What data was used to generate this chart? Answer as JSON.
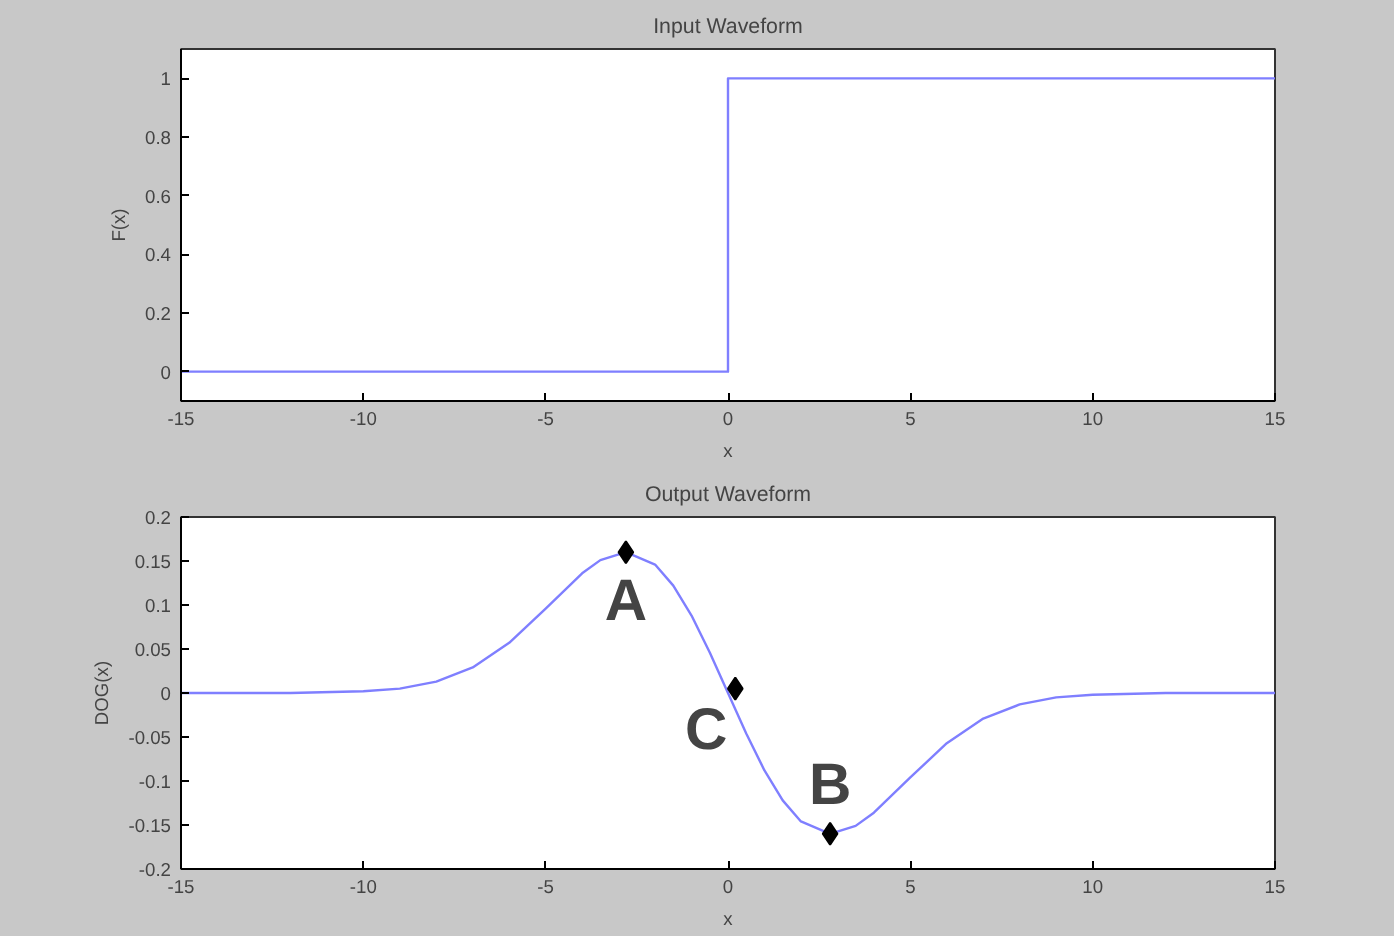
{
  "chart_data": [
    {
      "type": "line",
      "title": "Input Waveform",
      "xlabel": "x",
      "ylabel": "F(x)",
      "xlim": [
        -15,
        15
      ],
      "xticks": [
        -15,
        -10,
        -5,
        0,
        5,
        10,
        15
      ],
      "ylim": [
        -0.1,
        1.1
      ],
      "yticks": [
        0,
        0.2,
        0.4,
        0.6,
        0.8,
        1
      ],
      "grid": false,
      "series": [
        {
          "color": "#7f7fff",
          "x": [
            -15,
            0,
            0,
            15
          ],
          "values": [
            0,
            0,
            1,
            1
          ]
        }
      ]
    },
    {
      "type": "line",
      "title": "Output Waveform",
      "xlabel": "x",
      "ylabel": "DOG(x)",
      "xlim": [
        -15,
        15
      ],
      "xticks": [
        -15,
        -10,
        -5,
        0,
        5,
        10,
        15
      ],
      "ylim": [
        -0.2,
        0.2
      ],
      "yticks": [
        -0.2,
        -0.15,
        -0.1,
        -0.05,
        0,
        0.05,
        0.1,
        0.15,
        0.2
      ],
      "grid": false,
      "series": [
        {
          "color": "#7f7fff",
          "x": [
            -15,
            -12,
            -10,
            -9,
            -8,
            -7,
            -6,
            -5,
            -4,
            -3.5,
            -2.8,
            -2,
            -1.5,
            -1,
            -0.5,
            0,
            0.5,
            1,
            1.5,
            2,
            2.8,
            3.5,
            4,
            5,
            6,
            7,
            8,
            9,
            10,
            12,
            15
          ],
          "values": [
            0,
            0,
            0.002,
            0.005,
            0.013,
            0.029,
            0.057,
            0.096,
            0.136,
            0.151,
            0.16,
            0.146,
            0.122,
            0.088,
            0.046,
            0,
            -0.046,
            -0.088,
            -0.122,
            -0.146,
            -0.16,
            -0.151,
            -0.136,
            -0.096,
            -0.057,
            -0.029,
            -0.013,
            -0.005,
            -0.002,
            0,
            0
          ]
        },
        {
          "type": "scatter",
          "marker": "diamond",
          "color": "#000000",
          "x": [
            -2.8,
            2.8,
            0.2
          ],
          "values": [
            0.16,
            -0.16,
            0.005
          ]
        }
      ],
      "annotations": [
        {
          "text": "A",
          "x": -2.8,
          "y": 0.16
        },
        {
          "text": "B",
          "x": 2.8,
          "y": -0.16
        },
        {
          "text": "C",
          "x": 0.2,
          "y": 0.005
        }
      ]
    }
  ]
}
